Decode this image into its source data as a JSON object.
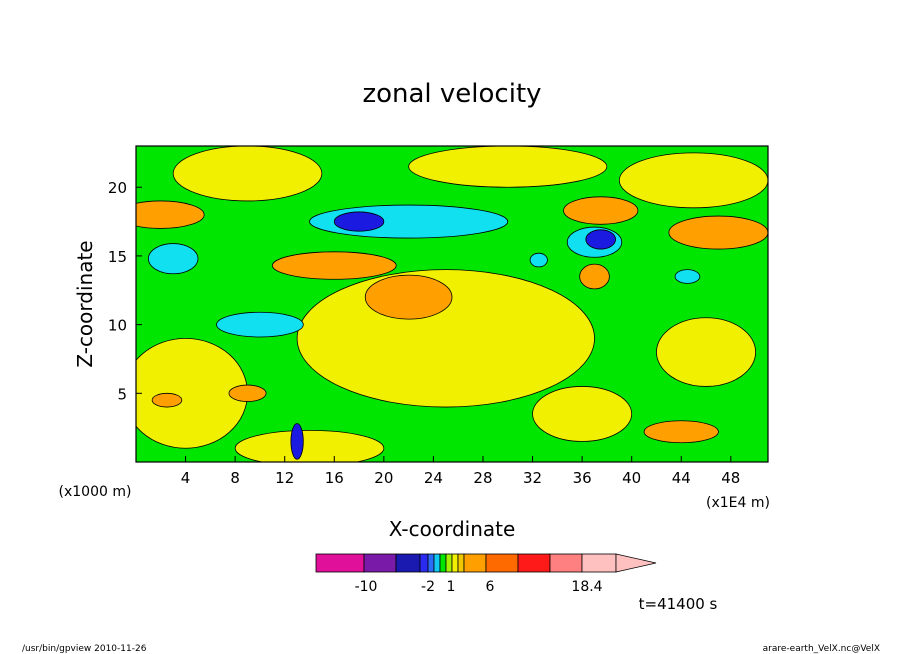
{
  "chart_data": {
    "type": "heatmap",
    "title": "zonal velocity",
    "xlabel": "X-coordinate",
    "ylabel": "Z-coordinate",
    "x_unit": "(x1E4 m)",
    "y_unit": "(x1000 m)",
    "xlim": [
      0,
      51
    ],
    "ylim": [
      0,
      23
    ],
    "x_ticks": [
      4,
      8,
      12,
      16,
      20,
      24,
      28,
      32,
      36,
      40,
      44,
      48
    ],
    "y_ticks": [
      5,
      10,
      15,
      20
    ],
    "grid": false,
    "colorbar": {
      "colors": [
        "#e0109a",
        "#7a1aa8",
        "#1a1ab0",
        "#2a2af0",
        "#2a6cf6",
        "#10c8f0",
        "#00e600",
        "#a6f000",
        "#f0f000",
        "#f0c800",
        "#ffa000",
        "#ff6a00",
        "#ff1a1a",
        "#ff8080",
        "#ffc0c0"
      ],
      "tick_labels": [
        "-10",
        "-2",
        "1",
        "6",
        "18.4"
      ],
      "tick_values": [
        -10,
        -2,
        1,
        6,
        18.4
      ]
    },
    "annotation": "t=41400 s",
    "footer_left": "/usr/bin/gpview   2010-11-26",
    "footer_right": "arare-earth_VelX.nc@VelX",
    "regions": [
      {
        "kind": "yellow",
        "x": 25,
        "z": 9,
        "rx": 12,
        "rz": 5
      },
      {
        "kind": "yellow",
        "x": 4,
        "z": 5,
        "rx": 5,
        "rz": 4
      },
      {
        "kind": "yellow",
        "x": 9,
        "z": 21,
        "rx": 6,
        "rz": 2
      },
      {
        "kind": "yellow",
        "x": 30,
        "z": 21.5,
        "rx": 8,
        "rz": 1.5
      },
      {
        "kind": "yellow",
        "x": 45,
        "z": 20.5,
        "rx": 6,
        "rz": 2
      },
      {
        "kind": "yellow",
        "x": 14,
        "z": 1,
        "rx": 6,
        "rz": 1.3
      },
      {
        "kind": "yellow",
        "x": 36,
        "z": 3.5,
        "rx": 4,
        "rz": 2
      },
      {
        "kind": "yellow",
        "x": 46,
        "z": 8,
        "rx": 4,
        "rz": 2.5
      },
      {
        "kind": "orange",
        "x": 2,
        "z": 18,
        "rx": 3.5,
        "rz": 1
      },
      {
        "kind": "orange",
        "x": 22,
        "z": 12,
        "rx": 3.5,
        "rz": 1.6
      },
      {
        "kind": "orange",
        "x": 16,
        "z": 14.3,
        "rx": 5,
        "rz": 1
      },
      {
        "kind": "orange",
        "x": 37.5,
        "z": 18.3,
        "rx": 3,
        "rz": 1
      },
      {
        "kind": "orange",
        "x": 47,
        "z": 16.7,
        "rx": 4,
        "rz": 1.2
      },
      {
        "kind": "orange",
        "x": 37,
        "z": 13.5,
        "rx": 1.2,
        "rz": 0.9
      },
      {
        "kind": "orange",
        "x": 44,
        "z": 2.2,
        "rx": 3,
        "rz": 0.8
      },
      {
        "kind": "orange",
        "x": 9,
        "z": 5,
        "rx": 1.5,
        "rz": 0.6
      },
      {
        "kind": "orange",
        "x": 2.5,
        "z": 4.5,
        "rx": 1.2,
        "rz": 0.5
      },
      {
        "kind": "cyan",
        "x": 22,
        "z": 17.5,
        "rx": 8,
        "rz": 1.2
      },
      {
        "kind": "cyan",
        "x": 3,
        "z": 14.8,
        "rx": 2,
        "rz": 1.1
      },
      {
        "kind": "cyan",
        "x": 10,
        "z": 10,
        "rx": 3.5,
        "rz": 0.9
      },
      {
        "kind": "cyan",
        "x": 37,
        "z": 16,
        "rx": 2.2,
        "rz": 1.1
      },
      {
        "kind": "cyan",
        "x": 44.5,
        "z": 13.5,
        "rx": 1,
        "rz": 0.5
      },
      {
        "kind": "cyan",
        "x": 32.5,
        "z": 14.7,
        "rx": 0.7,
        "rz": 0.5
      },
      {
        "kind": "blue",
        "x": 18,
        "z": 17.5,
        "rx": 2,
        "rz": 0.7
      },
      {
        "kind": "blue",
        "x": 37.5,
        "z": 16.2,
        "rx": 1.2,
        "rz": 0.7
      },
      {
        "kind": "blue",
        "x": 13,
        "z": 1.5,
        "rx": 0.5,
        "rz": 1.3
      }
    ]
  }
}
